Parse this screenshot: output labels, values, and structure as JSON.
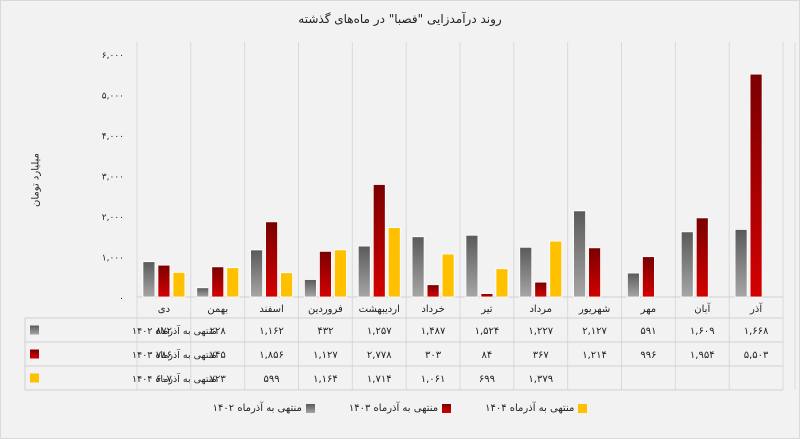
{
  "chart_data": {
    "type": "bar",
    "title": "روند درآمدزایی \"فصبا\" در ماه‌های گذشته",
    "ylabel": "میلیارد تومان",
    "xlabel": "",
    "ylim": [
      0,
      6000
    ],
    "yticks": [
      0,
      1000,
      2000,
      3000,
      4000,
      5000,
      6000
    ],
    "ytick_labels": [
      "۰",
      "۱,۰۰۰",
      "۲,۰۰۰",
      "۳,۰۰۰",
      "۴,۰۰۰",
      "۵,۰۰۰",
      "۶,۰۰۰"
    ],
    "grid": "vertical category separators",
    "legend_position": "bottom",
    "categories": [
      "دی",
      "بهمن",
      "اسفند",
      "فروردین",
      "اردیبهشت",
      "خرداد",
      "تیر",
      "مرداد",
      "شهریور",
      "مهر",
      "آبان",
      "آذر"
    ],
    "series": [
      {
        "name": "منتهی به آذرماه ۱۴۰۲",
        "color": "#7f7f7f",
        "color_top": "#5a5a5a",
        "color_bottom": "#a6a6a6",
        "values": [
          872,
          228,
          1162,
          432,
          1257,
          1487,
          1524,
          1227,
          2127,
          591,
          1609,
          1668
        ],
        "labels": [
          "۸۷۲",
          "۲۲۸",
          "۱,۱۶۲",
          "۴۳۲",
          "۱,۲۵۷",
          "۱,۴۸۷",
          "۱,۵۲۴",
          "۱,۲۲۷",
          "۲,۱۲۷",
          "۵۹۱",
          "۱,۶۰۹",
          "۱,۶۶۸"
        ]
      },
      {
        "name": "منتهی به آذرماه ۱۴۰۳",
        "color": "#c00000",
        "color_top": "#7a0000",
        "color_bottom": "#d40000",
        "values": [
          786,
          745,
          1856,
          1127,
          2778,
          303,
          84,
          367,
          1214,
          996,
          1954,
          5503
        ],
        "labels": [
          "۷۸۶",
          "۷۴۵",
          "۱,۸۵۶",
          "۱,۱۲۷",
          "۲,۷۷۸",
          "۳۰۳",
          "۸۴",
          "۳۶۷",
          "۱,۲۱۴",
          "۹۹۶",
          "۱,۹۵۴",
          "۵,۵۰۳"
        ]
      },
      {
        "name": "منتهی به آذرماه ۱۴۰۴",
        "color": "#ffc000",
        "color_top": "#ffc000",
        "color_bottom": "#ffc000",
        "values": [
          607,
          723,
          599,
          1164,
          1714,
          1061,
          699,
          1379,
          null,
          null,
          null,
          null
        ],
        "labels": [
          "۶۰۷",
          "۷۲۳",
          "۵۹۹",
          "۱,۱۶۴",
          "۱,۷۱۴",
          "۱,۰۶۱",
          "۶۹۹",
          "۱,۳۷۹",
          "",
          "",
          "",
          ""
        ]
      }
    ]
  },
  "legend": {
    "items": [
      "منتهی به آذرماه ۱۴۰۴",
      "منتهی به آذرماه ۱۴۰۳",
      "منتهی به آذرماه ۱۴۰۲"
    ]
  }
}
